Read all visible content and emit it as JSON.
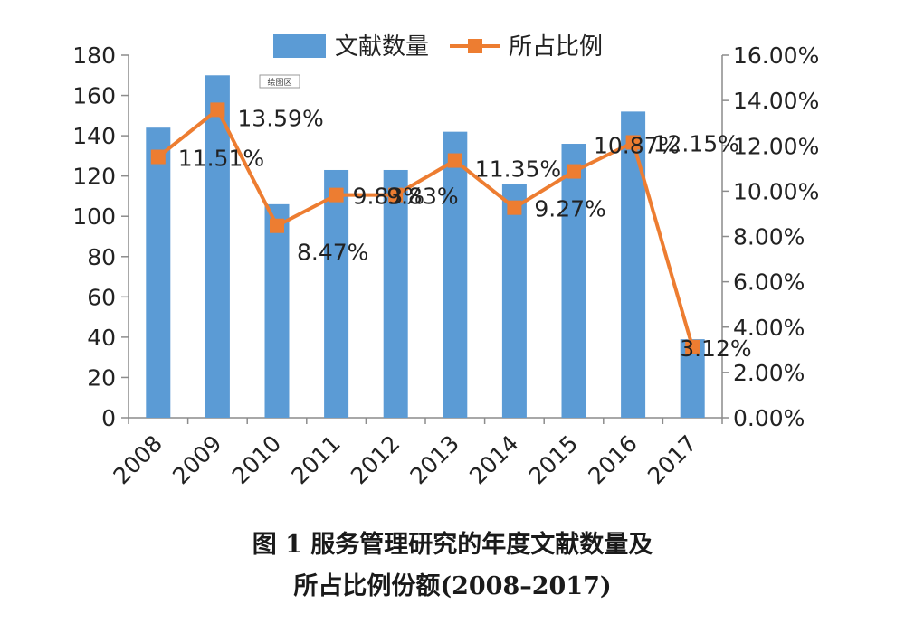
{
  "caption": {
    "line1": "图 1   服务管理研究的年度文献数量及",
    "line2": "所占比例份额(2008–2017)"
  },
  "plot_area_tag": "绘图区",
  "colors": {
    "bar": "#5b9bd5",
    "line": "#ed7d31",
    "axis": "#8c8c8c"
  },
  "chart_data": {
    "type": "bar",
    "categories": [
      "2008",
      "2009",
      "2010",
      "2011",
      "2012",
      "2013",
      "2014",
      "2015",
      "2016",
      "2017"
    ],
    "series": [
      {
        "name": "文献数量",
        "type": "bar",
        "axis": "left",
        "values": [
          144,
          170,
          106,
          123,
          123,
          142,
          116,
          136,
          152,
          39
        ]
      },
      {
        "name": "所占比例",
        "type": "line",
        "axis": "right",
        "values": [
          11.51,
          13.59,
          8.47,
          9.83,
          9.83,
          11.35,
          9.27,
          10.87,
          12.15,
          3.12
        ],
        "labels": [
          "11.51%",
          "13.59%",
          "8.47%",
          "9.83%",
          "9.83%",
          "11.35%",
          "9.27%",
          "10.87%",
          "12.15%",
          "3.12%"
        ]
      }
    ],
    "y_left": {
      "min": 0,
      "max": 180,
      "ticks": [
        "0",
        "20",
        "40",
        "60",
        "80",
        "100",
        "120",
        "140",
        "160",
        "180"
      ]
    },
    "y_right": {
      "min": 0,
      "max": 16,
      "ticks": [
        "0.00%",
        "2.00%",
        "4.00%",
        "6.00%",
        "8.00%",
        "10.00%",
        "12.00%",
        "14.00%",
        "16.00%"
      ]
    },
    "legend": "top-center",
    "grid": false
  }
}
